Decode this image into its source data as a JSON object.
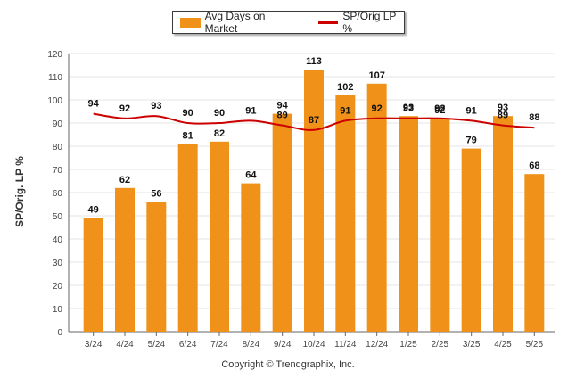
{
  "legend": {
    "bar_label": "Avg Days on Market",
    "line_label": "SP/Orig LP %"
  },
  "ylabel": "SP/Orig. LP %",
  "copyright": "Copyright © Trendgraphix, Inc.",
  "colors": {
    "bar": "#f0921a",
    "line": "#cc0000",
    "grid": "#e4e4e4",
    "axis": "#666666"
  },
  "chart_data": {
    "type": "bar",
    "title": "",
    "xlabel": "",
    "ylabel": "SP/Orig. LP %",
    "ylim": [
      0,
      120
    ],
    "yticks": [
      0,
      10,
      20,
      30,
      40,
      50,
      60,
      70,
      80,
      90,
      100,
      110,
      120
    ],
    "grid": true,
    "legend_position": "top-center",
    "categories": [
      "3/24",
      "4/24",
      "5/24",
      "6/24",
      "7/24",
      "8/24",
      "9/24",
      "10/24",
      "11/24",
      "12/24",
      "1/25",
      "2/25",
      "3/25",
      "4/25",
      "5/25"
    ],
    "series": [
      {
        "name": "Avg Days on Market",
        "type": "bar",
        "values": [
          49,
          62,
          56,
          81,
          82,
          64,
          94,
          113,
          102,
          107,
          93,
          92,
          79,
          93,
          68
        ]
      },
      {
        "name": "SP/Orig LP %",
        "type": "line",
        "values": [
          94,
          92,
          93,
          90,
          90,
          91,
          89,
          87,
          91,
          92,
          92,
          92,
          91,
          89,
          88
        ]
      }
    ]
  }
}
